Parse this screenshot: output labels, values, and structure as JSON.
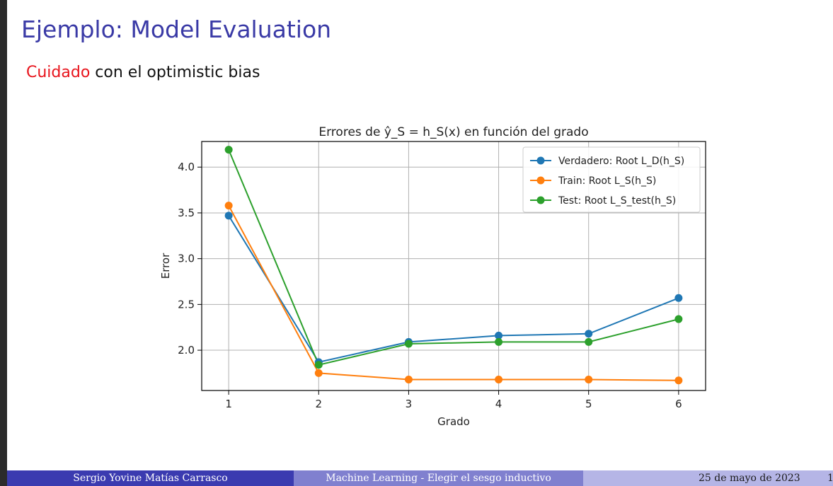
{
  "slide": {
    "title": "Ejemplo: Model Evaluation",
    "subtitle_highlight": "Cuidado",
    "subtitle_rest": " con el optimistic bias"
  },
  "footer": {
    "author": "Sergio Yovine Matías Carrasco",
    "course": "Machine Learning - Elegir el sesgo inductivo",
    "date": "25 de mayo de 2023",
    "page": "1"
  },
  "colors": {
    "title": "#3a3aa6",
    "highlight": "#e8141c",
    "footer_dark": "#3b3bb0",
    "footer_mid": "#8080cf",
    "footer_light": "#b5b5e6"
  },
  "chart_data": {
    "type": "line",
    "title": "Errores de ŷ_S = h_S(x) en función del grado",
    "xlabel": "Grado",
    "ylabel": "Error",
    "x": [
      1,
      2,
      3,
      4,
      5,
      6
    ],
    "xticks": [
      1,
      2,
      3,
      4,
      5,
      6
    ],
    "yticks": [
      2.0,
      2.5,
      3.0,
      3.5,
      4.0
    ],
    "xlim": [
      0.7,
      6.3
    ],
    "ylim": [
      1.56,
      4.28
    ],
    "grid": true,
    "legend_position": "top-right",
    "series": [
      {
        "name": "Verdadero: Root L_D(h_S)",
        "color": "#1f77b4",
        "values": [
          3.47,
          1.87,
          2.09,
          2.16,
          2.18,
          2.57
        ]
      },
      {
        "name": "Train: Root L_S(h_S)",
        "color": "#ff7f0e",
        "values": [
          3.58,
          1.75,
          1.68,
          1.68,
          1.68,
          1.67
        ]
      },
      {
        "name": "Test: Root L_S_test(h_S)",
        "color": "#2ca02c",
        "values": [
          4.19,
          1.84,
          2.07,
          2.09,
          2.09,
          2.34
        ]
      }
    ]
  }
}
